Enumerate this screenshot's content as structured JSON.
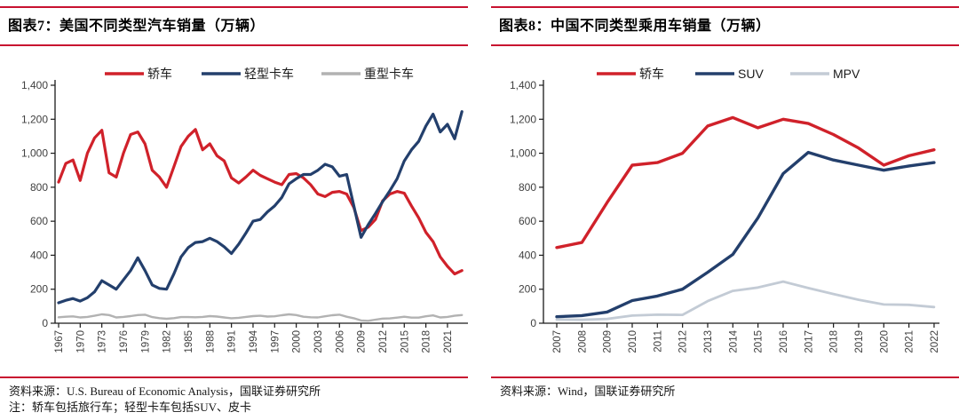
{
  "panels": [
    {
      "title": "图表7：美国不同类型汽车销量（万辆）",
      "source": "资料来源：U.S. Bureau of Economic Analysis，国联证券研究所",
      "note": "注：轿车包括旅行车；轻型卡车包括SUV、皮卡"
    },
    {
      "title": "图表8：中国不同类型乘用车销量（万辆）",
      "source": "资料来源：Wind，国联证券研究所",
      "note": ""
    }
  ],
  "colors": {
    "rule_red": "#c81230",
    "sedan_red": "#d0212a",
    "truck_navy": "#233f6c",
    "heavy_gray": "#b2b2b2",
    "mpv_gray": "#c3cbd5",
    "axis": "#1a1a1a",
    "tick_text": "#3f3f3f"
  },
  "chart_data": [
    {
      "type": "line",
      "title": "图表7：美国不同类型汽车销量（万辆）",
      "ylabel": "万辆",
      "ylim": [
        0,
        1400
      ],
      "ytick_step": 200,
      "grid": false,
      "legend_position": "top",
      "x": [
        1967,
        1968,
        1969,
        1970,
        1971,
        1972,
        1973,
        1974,
        1975,
        1976,
        1977,
        1978,
        1979,
        1980,
        1981,
        1982,
        1983,
        1984,
        1985,
        1986,
        1987,
        1988,
        1989,
        1990,
        1991,
        1992,
        1993,
        1994,
        1995,
        1996,
        1997,
        1998,
        1999,
        2000,
        2001,
        2002,
        2003,
        2004,
        2005,
        2006,
        2007,
        2008,
        2009,
        2010,
        2011,
        2012,
        2013,
        2014,
        2015,
        2016,
        2017,
        2018,
        2019,
        2020,
        2021,
        2022,
        2023
      ],
      "x_tick_labels": [
        "1967",
        "1970",
        "1973",
        "1976",
        "1979",
        "1982",
        "1985",
        "1988",
        "1991",
        "1994",
        "1997",
        "2000",
        "2003",
        "2006",
        "2009",
        "2012",
        "2015",
        "2018",
        "2021"
      ],
      "series": [
        {
          "name": "轿车",
          "color": "#d0212a",
          "values": [
            830,
            940,
            960,
            840,
            1000,
            1090,
            1135,
            885,
            860,
            1000,
            1110,
            1125,
            1055,
            900,
            860,
            800,
            920,
            1040,
            1100,
            1140,
            1020,
            1055,
            985,
            955,
            855,
            825,
            860,
            900,
            870,
            850,
            830,
            815,
            875,
            880,
            855,
            815,
            760,
            745,
            770,
            775,
            760,
            680,
            545,
            565,
            610,
            720,
            760,
            775,
            765,
            690,
            620,
            535,
            480,
            390,
            335,
            290,
            310
          ]
        },
        {
          "name": "轻型卡车",
          "color": "#233f6c",
          "values": [
            120,
            135,
            145,
            130,
            150,
            185,
            250,
            225,
            200,
            255,
            310,
            385,
            310,
            225,
            205,
            200,
            290,
            390,
            445,
            475,
            480,
            500,
            480,
            450,
            410,
            465,
            530,
            600,
            610,
            655,
            690,
            740,
            820,
            850,
            875,
            875,
            900,
            935,
            920,
            865,
            875,
            690,
            505,
            580,
            645,
            715,
            780,
            850,
            955,
            1020,
            1070,
            1160,
            1230,
            1125,
            1170,
            1085,
            1245
          ]
        },
        {
          "name": "重型卡车",
          "color": "#b2b2b2",
          "values": [
            35,
            38,
            40,
            34,
            37,
            44,
            52,
            48,
            34,
            37,
            42,
            48,
            50,
            36,
            30,
            26,
            30,
            36,
            36,
            35,
            37,
            42,
            39,
            34,
            29,
            32,
            37,
            42,
            44,
            39,
            41,
            47,
            52,
            48,
            38,
            35,
            34,
            41,
            47,
            50,
            38,
            29,
            16,
            14,
            21,
            27,
            28,
            33,
            38,
            33,
            33,
            41,
            46,
            34,
            37,
            44,
            48
          ]
        }
      ]
    },
    {
      "type": "line",
      "title": "图表8：中国不同类型乘用车销量（万辆）",
      "ylabel": "万辆",
      "ylim": [
        0,
        1400
      ],
      "ytick_step": 200,
      "grid": false,
      "legend_position": "top",
      "x": [
        2007,
        2008,
        2009,
        2010,
        2011,
        2012,
        2013,
        2014,
        2015,
        2016,
        2017,
        2018,
        2019,
        2020,
        2021,
        2022
      ],
      "x_tick_labels": [
        "2007",
        "2008",
        "2009",
        "2010",
        "2011",
        "2012",
        "2013",
        "2014",
        "2015",
        "2016",
        "2017",
        "2018",
        "2019",
        "2020",
        "2021",
        "2022"
      ],
      "series": [
        {
          "name": "轿车",
          "color": "#d0212a",
          "values": [
            445,
            475,
            710,
            930,
            945,
            1000,
            1160,
            1210,
            1150,
            1200,
            1175,
            1110,
            1030,
            930,
            985,
            1020
          ]
        },
        {
          "name": "SUV",
          "color": "#233f6c",
          "values": [
            38,
            45,
            66,
            133,
            160,
            200,
            300,
            405,
            620,
            880,
            1005,
            960,
            930,
            900,
            925,
            945
          ]
        },
        {
          "name": "MPV",
          "color": "#c3cbd5",
          "values": [
            22,
            20,
            25,
            45,
            50,
            49,
            130,
            190,
            210,
            245,
            207,
            172,
            138,
            110,
            108,
            95
          ]
        }
      ]
    }
  ]
}
